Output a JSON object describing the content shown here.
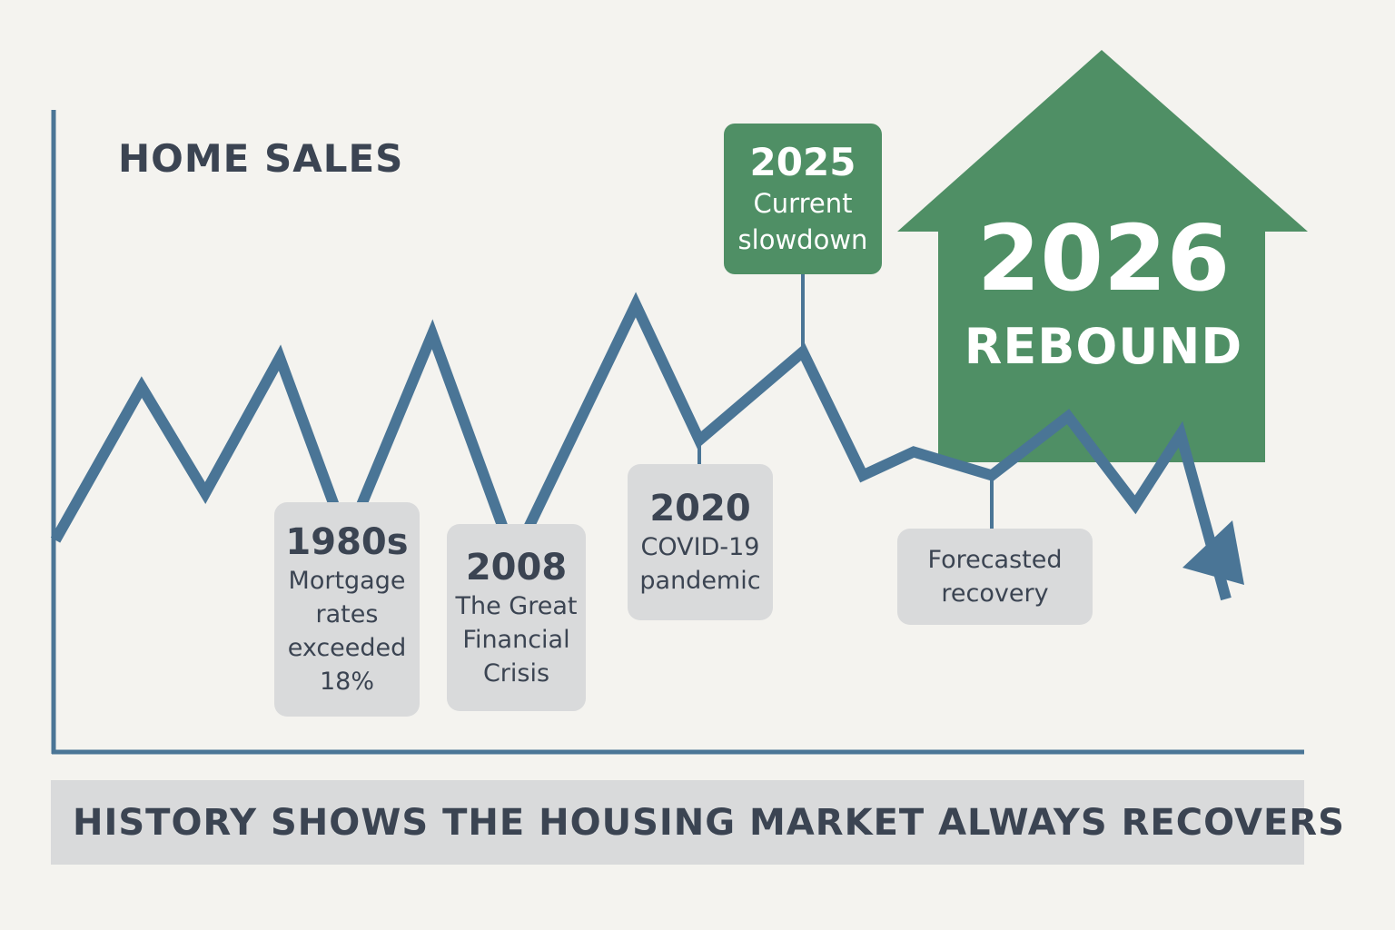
{
  "chart_data": {
    "type": "line",
    "title": "HOME SALES",
    "xlabel": "",
    "ylabel": "",
    "grid": false,
    "series": [
      {
        "values": [
          0.36,
          0.62,
          0.44,
          0.67,
          0.36,
          0.71,
          0.33,
          0.76,
          0.53,
          0.68,
          0.47,
          0.51,
          0.47,
          0.57,
          0.42,
          0.54,
          0.26
        ]
      }
    ],
    "ylim": [
      0,
      1
    ],
    "annotations": [
      {
        "year": "1980s",
        "text": [
          "Mortgage",
          "rates",
          "exceeded",
          "18%"
        ]
      },
      {
        "year": "2008",
        "text": [
          "The Great",
          "Financial",
          "Crisis"
        ]
      },
      {
        "year": "2020",
        "text": [
          "COVID-19",
          "pandemic"
        ]
      },
      {
        "year": "2025",
        "text": [
          "Current",
          "slowdown"
        ],
        "color": "#4f8f65"
      },
      {
        "year": "",
        "text": [
          "Forecasted",
          "recovery"
        ]
      }
    ],
    "highlight": {
      "year": "2026",
      "label": "REBOUND",
      "shape": "house-arrow",
      "color": "#4f8f65"
    },
    "caption": "HISTORY SHOWS THE HOUSING MARKET ALWAYS RECOVERS",
    "colors": {
      "line": "#4a7596",
      "accent": "#4f8f65",
      "callout_bg": "#d9dadb",
      "text": "#3b4452",
      "background": "#f4f3ef"
    }
  }
}
